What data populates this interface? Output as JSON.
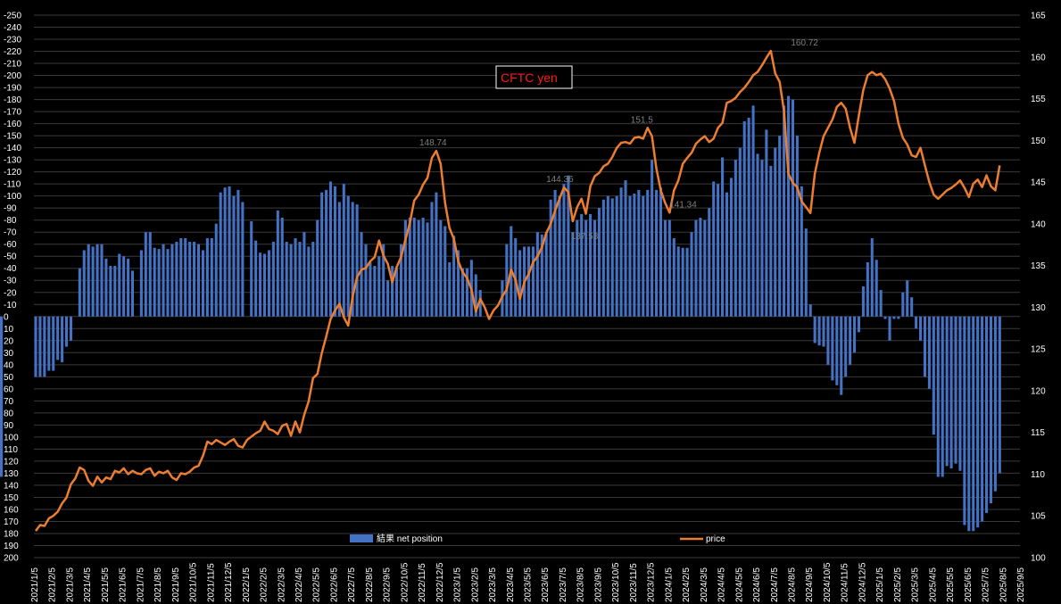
{
  "chart_data": {
    "type": "bar+line",
    "title": "CFTC   yen",
    "left_axis": {
      "range": [
        -250,
        200
      ],
      "step": 10,
      "inverted": true,
      "tick_labels": [
        "-250",
        "-240",
        "-230",
        "-220",
        "-210",
        "-200",
        "-190",
        "-180",
        "-170",
        "-160",
        "-150",
        "-140",
        "-130",
        "-120",
        "-110",
        "-100",
        "-90",
        "-80",
        "-70",
        "-60",
        "-50",
        "-40",
        "-30",
        "-20",
        "-10",
        "0",
        "10",
        "20",
        "30",
        "40",
        "50",
        "60",
        "70",
        "80",
        "90",
        "100",
        "110",
        "120",
        "130",
        "140",
        "150",
        "160",
        "170",
        "180",
        "190",
        "200"
      ]
    },
    "right_axis": {
      "range": [
        100,
        165
      ],
      "step": 5,
      "tick_labels": [
        "165",
        "160",
        "155",
        "150",
        "145",
        "140",
        "135",
        "130",
        "125",
        "120",
        "115",
        "110",
        "105",
        "100"
      ]
    },
    "x_axis": {
      "start": "2021/1/5",
      "end": "2025/9/5",
      "tick_labels": [
        "2021/1/5",
        "2021/2/5",
        "2021/3/5",
        "2021/4/5",
        "2021/5/5",
        "2021/6/5",
        "2021/7/5",
        "2021/8/5",
        "2021/9/5",
        "2021/10/5",
        "2021/11/5",
        "2021/12/5",
        "2022/1/5",
        "2022/2/5",
        "2022/3/5",
        "2022/4/5",
        "2022/5/5",
        "2022/6/5",
        "2022/7/5",
        "2022/8/5",
        "2022/9/5",
        "2022/10/5",
        "2022/11/5",
        "2022/12/5",
        "2023/1/5",
        "2023/2/5",
        "2023/3/5",
        "2023/4/5",
        "2023/5/5",
        "2023/6/5",
        "2023/7/5",
        "2023/8/5",
        "2023/9/5",
        "2023/10/5",
        "2023/11/5",
        "2023/12/5",
        "2024/1/5",
        "2024/2/5",
        "2024/3/5",
        "2024/4/5",
        "2024/5/5",
        "2024/6/5",
        "2024/7/5",
        "2024/8/5",
        "2024/9/5",
        "2024/10/5",
        "2024/11/5",
        "2024/12/5",
        "2025/1/5",
        "2025/2/5",
        "2025/3/5",
        "2025/4/5",
        "2025/5/5",
        "2025/6/5",
        "2025/7/5",
        "2025/8/5",
        "2025/9/5"
      ]
    },
    "grid": true,
    "legend_placement": "bottom",
    "series": [
      {
        "name": "結果 net position",
        "type": "bar",
        "color": "#4472c4",
        "axis": "left",
        "x_month_offset": [
          0,
          0.25,
          0.5,
          0.75,
          1,
          1.25,
          1.5,
          1.75,
          2,
          2.25,
          2.5,
          2.75,
          3,
          3.25,
          3.5,
          3.75,
          4,
          4.25,
          4.5,
          4.75,
          5,
          5.25,
          5.5,
          5.75,
          6,
          6.25,
          6.5,
          6.75,
          7,
          7.25,
          7.5,
          7.75,
          8,
          8.25,
          8.5,
          8.75,
          9,
          9.25,
          9.5,
          9.75,
          10,
          10.25,
          10.5,
          10.75,
          11,
          11.25,
          11.5,
          11.75,
          12,
          12.25,
          12.5,
          12.75,
          13,
          13.25,
          13.5,
          13.75,
          14,
          14.25,
          14.5,
          14.75,
          15,
          15.25,
          15.5,
          15.75,
          16,
          16.25,
          16.5,
          16.75,
          17,
          17.25,
          17.5,
          17.75,
          18,
          18.25,
          18.5,
          18.75,
          19,
          19.25,
          19.5,
          19.75,
          20,
          20.25,
          20.5,
          20.75,
          21,
          21.25,
          21.5,
          21.75,
          22,
          22.25,
          22.5,
          22.75,
          23,
          23.25,
          23.5,
          23.75,
          24,
          24.25,
          24.5,
          24.75,
          25,
          25.25,
          25.5,
          25.75,
          26,
          26.25,
          26.5,
          26.75,
          27,
          27.25,
          27.5,
          27.75,
          28,
          28.25,
          28.5,
          28.75,
          29,
          29.25,
          29.5,
          29.75,
          30,
          30.25,
          30.5,
          30.75,
          31,
          31.25,
          31.5,
          31.75,
          32,
          32.25,
          32.5,
          32.75,
          33,
          33.25,
          33.5,
          33.75,
          34,
          34.25,
          34.5,
          34.75,
          35,
          35.25,
          35.5,
          35.75,
          36,
          36.25,
          36.5,
          36.75,
          37,
          37.25,
          37.5,
          37.75,
          38,
          38.25,
          38.5,
          38.75,
          39,
          39.25,
          39.5,
          39.75,
          40,
          40.25,
          40.5,
          40.75,
          41,
          41.25,
          41.5,
          41.75,
          42,
          42.25,
          42.5,
          42.75,
          43,
          43.25,
          43.5,
          43.75,
          44,
          44.25,
          44.5,
          44.75,
          45,
          45.25,
          45.5,
          45.75,
          46,
          46.25,
          46.5,
          46.75,
          47,
          47.25,
          47.5,
          47.75,
          48,
          48.25,
          48.5,
          48.75,
          49,
          49.25,
          49.5,
          49.75,
          50,
          50.25,
          50.5,
          50.75,
          51,
          51.25,
          51.5,
          51.75,
          52,
          52.25,
          52.5,
          52.75,
          53,
          53.25,
          53.5,
          53.75,
          54,
          54.25,
          54.5,
          54.75
        ],
        "values": [
          50,
          50,
          50,
          45,
          45,
          36,
          38,
          25,
          20,
          0,
          -40,
          -55,
          -60,
          -58,
          -60,
          -60,
          -48,
          -42,
          -42,
          -52,
          -50,
          -48,
          -38,
          0,
          -55,
          -70,
          -70,
          -57,
          -56,
          -60,
          -56,
          -60,
          -62,
          -65,
          -65,
          -62,
          -62,
          -60,
          -55,
          -65,
          -65,
          -77,
          -103,
          -107,
          -108,
          -100,
          -105,
          -95,
          0,
          -79,
          -63,
          -53,
          -52,
          -55,
          -62,
          -88,
          -82,
          -62,
          -60,
          -65,
          -62,
          -70,
          -58,
          -62,
          -80,
          -103,
          -105,
          -112,
          -108,
          -95,
          -110,
          -100,
          -95,
          -93,
          -70,
          -60,
          -45,
          -42,
          -50,
          -60,
          -30,
          -42,
          -40,
          -60,
          -80,
          -82,
          -82,
          -80,
          -82,
          -78,
          -95,
          -103,
          -80,
          -75,
          -45,
          -67,
          -55,
          -40,
          -40,
          -47,
          -35,
          -22,
          0,
          0,
          0,
          0,
          -30,
          -60,
          -75,
          -65,
          -55,
          -58,
          -58,
          -58,
          -70,
          -68,
          -70,
          -97,
          -105,
          -100,
          -110,
          -117,
          -70,
          -80,
          -85,
          -80,
          -85,
          -80,
          -90,
          -97,
          -100,
          -98,
          -100,
          -107,
          -113,
          -100,
          -102,
          -105,
          -100,
          -105,
          -130,
          -105,
          -107,
          -80,
          -80,
          -65,
          -58,
          -57,
          -57,
          -70,
          -80,
          -82,
          -80,
          -90,
          -112,
          -110,
          -132,
          -103,
          -115,
          -130,
          -140,
          -162,
          -165,
          -175,
          -135,
          -130,
          -155,
          -125,
          -140,
          -150,
          -175,
          -183,
          -180,
          -150,
          -108,
          -73,
          -10,
          22,
          24,
          25,
          40,
          53,
          57,
          65,
          50,
          40,
          30,
          13,
          -25,
          -45,
          -65,
          -47,
          -22,
          2,
          20,
          2,
          2,
          -20,
          -30,
          -16,
          10,
          20,
          50,
          60,
          98,
          133,
          133,
          124,
          126,
          122,
          128,
          173,
          178,
          178,
          175,
          170,
          163,
          155,
          145,
          130,
          133,
          127,
          117
        ]
      },
      {
        "name": "price",
        "type": "line",
        "color": "#ed7d31",
        "axis": "right",
        "x_month_offset": [
          0,
          0.25,
          0.5,
          0.75,
          1,
          1.25,
          1.5,
          1.75,
          2,
          2.25,
          2.5,
          2.75,
          3,
          3.25,
          3.5,
          3.75,
          4,
          4.25,
          4.5,
          4.75,
          5,
          5.25,
          5.5,
          5.75,
          6,
          6.25,
          6.5,
          6.75,
          7,
          7.25,
          7.5,
          7.75,
          8,
          8.25,
          8.5,
          8.75,
          9,
          9.25,
          9.5,
          9.75,
          10,
          10.25,
          10.5,
          10.75,
          11,
          11.25,
          11.5,
          11.75,
          12,
          12.25,
          12.5,
          12.75,
          13,
          13.25,
          13.5,
          13.75,
          14,
          14.25,
          14.5,
          14.75,
          15,
          15.25,
          15.5,
          15.75,
          16,
          16.25,
          16.5,
          16.75,
          17,
          17.25,
          17.5,
          17.75,
          18,
          18.25,
          18.5,
          18.75,
          19,
          19.25,
          19.5,
          19.75,
          20,
          20.25,
          20.5,
          20.75,
          21,
          21.25,
          21.5,
          21.75,
          22,
          22.25,
          22.5,
          22.75,
          23,
          23.25,
          23.5,
          23.75,
          24,
          24.25,
          24.5,
          24.75,
          25,
          25.25,
          25.5,
          25.75,
          26,
          26.25,
          26.5,
          26.75,
          27,
          27.25,
          27.5,
          27.75,
          28,
          28.25,
          28.5,
          28.75,
          29,
          29.25,
          29.5,
          29.75,
          30,
          30.25,
          30.5,
          30.75,
          31,
          31.25,
          31.5,
          31.75,
          32,
          32.25,
          32.5,
          32.75,
          33,
          33.25,
          33.5,
          33.75,
          34,
          34.25,
          34.5,
          34.75,
          35,
          35.25,
          35.5,
          35.75,
          36,
          36.25,
          36.5,
          36.75,
          37,
          37.25,
          37.5,
          37.75,
          38,
          38.25,
          38.5,
          38.75,
          39,
          39.25,
          39.5,
          39.75,
          40,
          40.25,
          40.5,
          40.75,
          41,
          41.25,
          41.5,
          41.75,
          42,
          42.25,
          42.5,
          42.75,
          43,
          43.25,
          43.5,
          43.75,
          44,
          44.25,
          44.5,
          44.75,
          45,
          45.25,
          45.5,
          45.75,
          46,
          46.25,
          46.5,
          46.75,
          47,
          47.25,
          47.5,
          47.75,
          48,
          48.25,
          48.5,
          48.75,
          49,
          49.25,
          49.5,
          49.75,
          50,
          50.25,
          50.5,
          50.75,
          51,
          51.25,
          51.5,
          51.75,
          52,
          52.25,
          52.5,
          52.75,
          53,
          53.25,
          53.5,
          53.75,
          54,
          54.25,
          54.5,
          54.75
        ],
        "values": [
          103.2,
          103.9,
          103.8,
          104.7,
          105.0,
          105.5,
          106.5,
          107.2,
          108.8,
          109.5,
          110.8,
          110.5,
          109.2,
          108.6,
          109.7,
          109.0,
          109.6,
          109.4,
          110.4,
          110.2,
          110.7,
          110.0,
          110.4,
          110.1,
          110.0,
          110.5,
          110.7,
          109.8,
          110.3,
          110.1,
          110.4,
          109.6,
          109.3,
          110.1,
          110.0,
          110.3,
          110.8,
          111.0,
          112.2,
          113.9,
          113.6,
          114.1,
          113.8,
          113.5,
          113.9,
          114.2,
          113.4,
          113.2,
          114.1,
          114.5,
          114.9,
          115.2,
          116.3,
          115.4,
          115.2,
          114.8,
          115.8,
          116.0,
          114.6,
          116.3,
          115.0,
          117.1,
          118.7,
          121.5,
          122.0,
          124.5,
          126.5,
          128.6,
          129.6,
          130.4,
          128.8,
          127.8,
          131.3,
          133.6,
          134.5,
          134.7,
          135.5,
          136.0,
          138.0,
          136.2,
          135.2,
          133.0,
          134.8,
          136.0,
          138.1,
          140.1,
          142.8,
          143.5,
          144.7,
          145.5,
          147.9,
          148.74,
          147.2,
          142.5,
          139.5,
          138.2,
          135.5,
          134.2,
          133.5,
          132.1,
          129.5,
          131.0,
          130.0,
          128.6,
          129.6,
          130.2,
          131.3,
          132.1,
          134.5,
          133.3,
          131.0,
          133.0,
          134.0,
          135.4,
          136.1,
          137.2,
          138.9,
          140.0,
          141.6,
          143.0,
          144.36,
          143.8,
          140.3,
          142.0,
          143.0,
          141.2,
          144.5,
          145.7,
          146.1,
          146.9,
          147.2,
          148.0,
          149.1,
          149.7,
          149.8,
          149.6,
          150.3,
          150.4,
          150.2,
          151.5,
          150.5,
          146.6,
          144.0,
          142.5,
          141.34,
          144.0,
          145.2,
          147.2,
          147.9,
          148.5,
          149.6,
          150.1,
          150.5,
          149.8,
          150.2,
          151.5,
          152.1,
          154.5,
          154.7,
          155.1,
          155.8,
          156.3,
          157.0,
          157.8,
          158.2,
          159.0,
          159.9,
          160.72,
          158.0,
          157.0,
          153.5,
          146.0,
          144.9,
          144.4,
          142.7,
          142.0,
          141.3,
          146.0,
          148.5,
          150.5,
          151.5,
          152.5,
          154.0,
          154.5,
          153.8,
          151.5,
          149.7,
          153.0,
          156.0,
          157.8,
          158.2,
          157.8,
          158.0,
          157.3,
          156.2,
          154.7,
          152.0,
          150.3,
          149.5,
          148.2,
          148.0,
          149.1,
          147.0,
          145.0,
          143.5,
          143.0,
          143.5,
          144.0,
          144.3,
          144.7,
          145.2,
          144.3,
          143.2,
          144.8,
          145.3,
          144.4,
          145.8,
          144.5,
          144.0,
          147.0
        ]
      }
    ],
    "annotations": [
      {
        "text": "160.72",
        "x_month_offset": 43.5,
        "y": 160.72
      },
      {
        "text": "148.74",
        "x_month_offset": 22.4,
        "y": 148.74
      },
      {
        "text": "151.5",
        "x_month_offset": 34.4,
        "y": 151.5
      },
      {
        "text": "144.36",
        "x_month_offset": 29.6,
        "y": 144.36
      },
      {
        "text": "141.34",
        "x_month_offset": 36.6,
        "y": 141.34
      },
      {
        "text": "137.53",
        "x_month_offset": 31.0,
        "y": 137.53
      }
    ],
    "legend": [
      {
        "label": "結果 net position",
        "color": "#4472c4",
        "kind": "bar"
      },
      {
        "label": "price",
        "color": "#ed7d31",
        "kind": "line"
      }
    ]
  }
}
